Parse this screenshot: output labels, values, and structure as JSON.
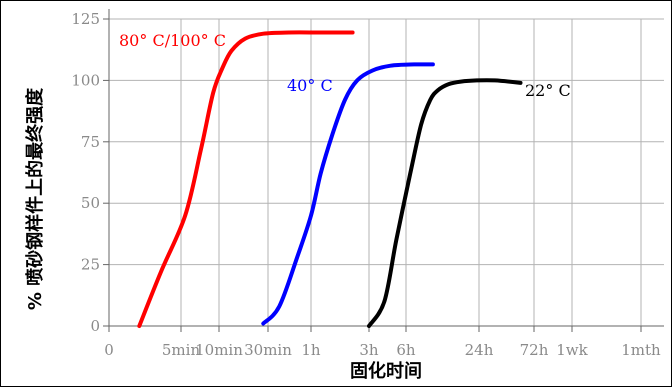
{
  "chart_data": {
    "type": "line",
    "title": "",
    "xlabel": "固化时间",
    "ylabel": "% 喷砂钢样件上的最终强度",
    "ylim": [
      0,
      125
    ],
    "y_ticks": [
      0,
      25,
      50,
      75,
      100,
      125
    ],
    "x_axis_scale": "log (cure time)",
    "x_tick_labels": [
      "0",
      "5min",
      "10min",
      "30min",
      "1h",
      "3h",
      "6h",
      "24h",
      "72h",
      "1wk",
      "1mth"
    ],
    "x_tick_values_hours": [
      0,
      0.0833,
      0.1667,
      0.5,
      1,
      3,
      6,
      24,
      72,
      168,
      720
    ],
    "grid": true,
    "series": [
      {
        "name": "80° C/100° C",
        "color": "#ff0000",
        "x_hours": [
          0.035,
          0.06,
          0.09,
          0.12,
          0.15,
          0.18,
          0.22,
          0.3,
          0.45,
          0.7,
          1.2,
          2.2
        ],
        "y": [
          0,
          22,
          45,
          72,
          95,
          105,
          112,
          117,
          119,
          119.5,
          119.5,
          119.5
        ]
      },
      {
        "name": "40° C",
        "color": "#0000ff",
        "x_hours": [
          0.45,
          0.6,
          0.8,
          1.0,
          1.2,
          1.5,
          1.9,
          2.4,
          3.2,
          4.5,
          7,
          10
        ],
        "y": [
          1,
          8,
          28,
          45,
          62,
          78,
          92,
          100,
          104,
          106,
          106.5,
          106.5
        ]
      },
      {
        "name": "22° C",
        "color": "#000000",
        "x_hours": [
          3,
          4,
          5,
          6.5,
          8,
          9.5,
          11,
          13.5,
          17,
          23,
          33,
          55
        ],
        "y": [
          0,
          10,
          35,
          62,
          82,
          92,
          96,
          98.5,
          99.5,
          100,
          100,
          99
        ]
      }
    ]
  }
}
